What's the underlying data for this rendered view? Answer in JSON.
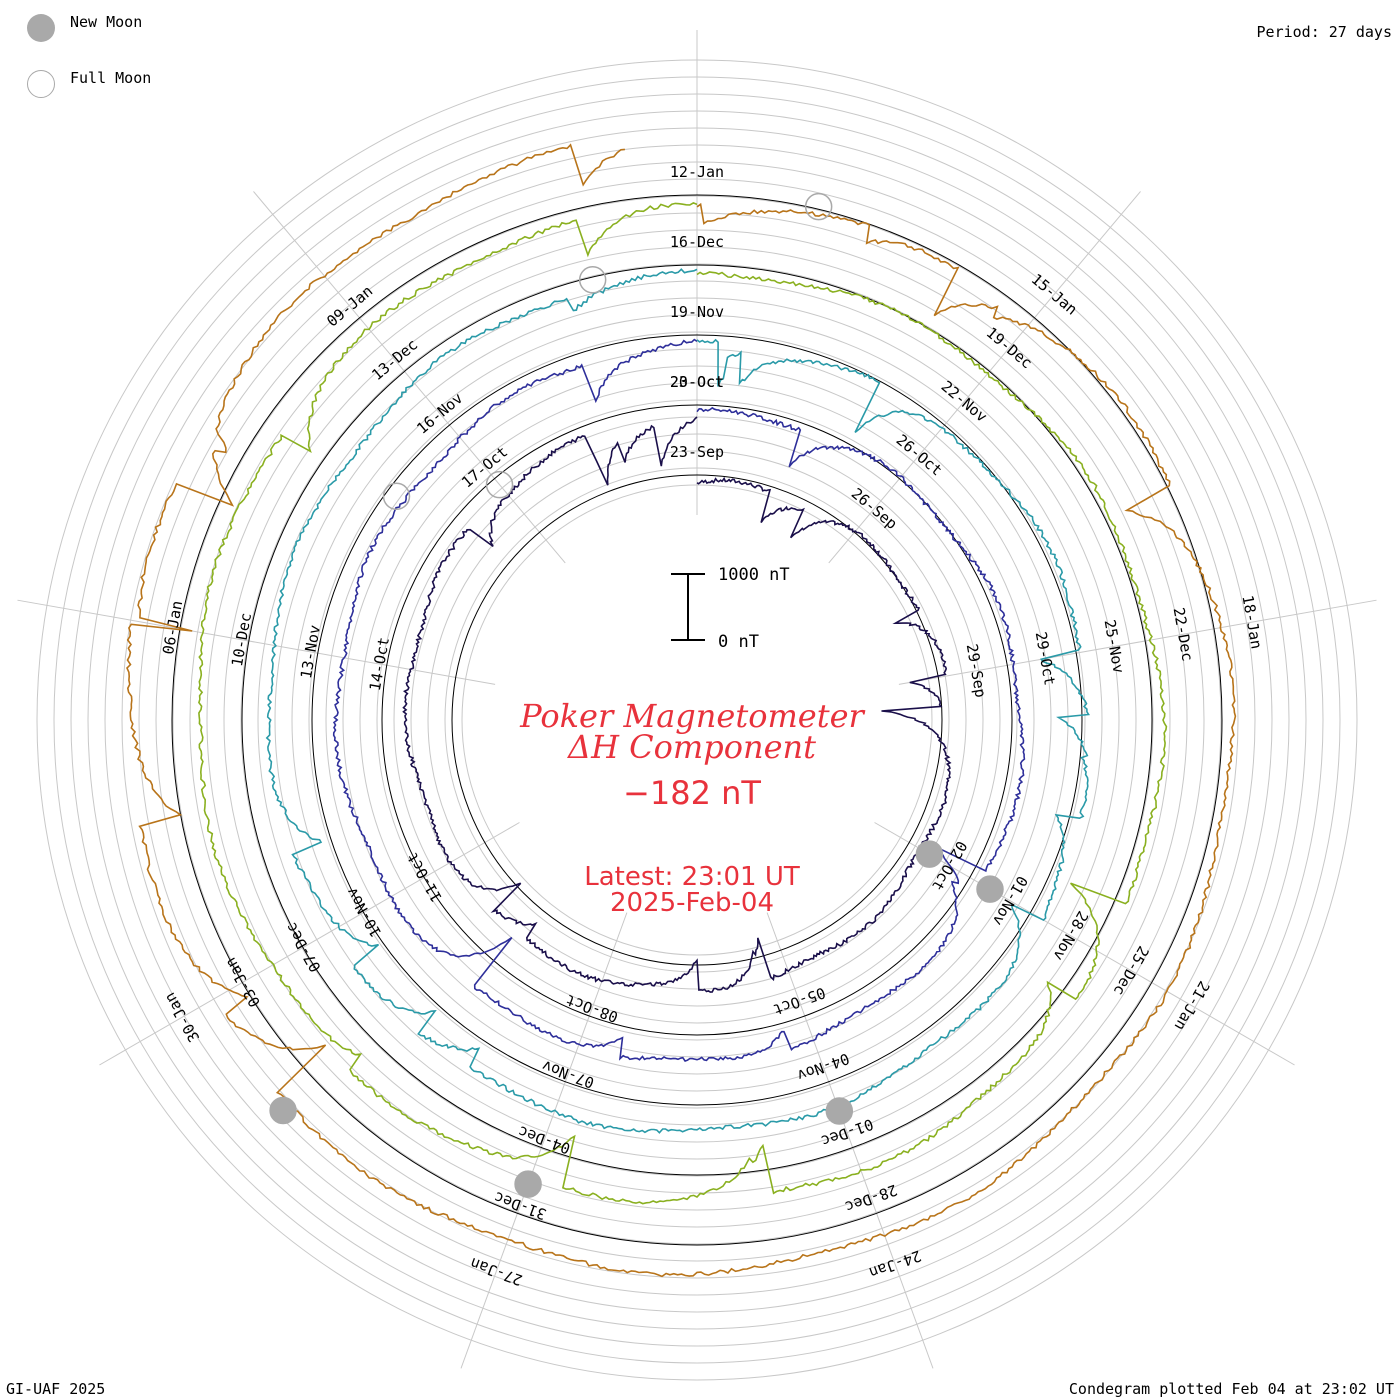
{
  "legend": {
    "new_moon": "New Moon",
    "full_moon": "Full Moon"
  },
  "period_label": "Period: 27 days",
  "footer_left": "GI-UAF 2025",
  "footer_right": "Condegram plotted Feb 04 at 23:02 UT",
  "chart_data": {
    "type": "line",
    "title": "Poker Magnetometer",
    "subtitle": "ΔH Component",
    "current_value": "−182 nT",
    "latest_line1": "Latest: 23:01 UT",
    "latest_line2": "2025-Feb-04",
    "scale_bar": {
      "top_label": "1000 nT",
      "bottom_label": "0 nT"
    },
    "period_days": 27,
    "layout_style": "spiral condegram; each 27-day rotation plotted on its own ring, innermost oldest",
    "rotations": [
      {
        "color": "#1a0f4a",
        "labels": [
          "23-Sep",
          "26-Sep",
          "29-Sep",
          "02-Oct",
          "05-Oct",
          "08-Oct",
          "11-Oct",
          "14-Oct",
          "17-Oct",
          "20-Oct"
        ]
      },
      {
        "color": "#2e2f9a",
        "labels": [
          "23-Oct",
          "26-Oct",
          "29-Oct",
          "01-Nov",
          "04-Nov",
          "07-Nov",
          "10-Nov",
          "13-Nov",
          "16-Nov"
        ]
      },
      {
        "color": "#2a9aa8",
        "labels": [
          "19-Nov",
          "22-Nov",
          "25-Nov",
          "28-Nov",
          "01-Dec",
          "04-Dec",
          "07-Dec",
          "10-Dec",
          "13-Dec"
        ]
      },
      {
        "color": "#8ab020",
        "labels": [
          "16-Dec",
          "19-Dec",
          "22-Dec",
          "25-Dec",
          "28-Dec",
          "31-Dec",
          "03-Jan",
          "06-Jan",
          "09-Jan"
        ]
      },
      {
        "color": "#b8741a",
        "labels": [
          "12-Jan",
          "15-Jan",
          "18-Jan",
          "21-Jan",
          "24-Jan",
          "27-Jan",
          "30-Jan"
        ]
      }
    ],
    "moon_phases": {
      "new_moon": [
        "02-Oct",
        "01-Nov",
        "01-Dec",
        "31-Dec",
        "29-Jan"
      ],
      "full_moon": [
        "17-Oct",
        "15-Nov",
        "15-Dec",
        "13-Jan"
      ]
    },
    "colors": {
      "title": "#e8323c",
      "grid": "#c8c8c8",
      "axis": "#000000",
      "moon": "#a9a9a9"
    }
  }
}
